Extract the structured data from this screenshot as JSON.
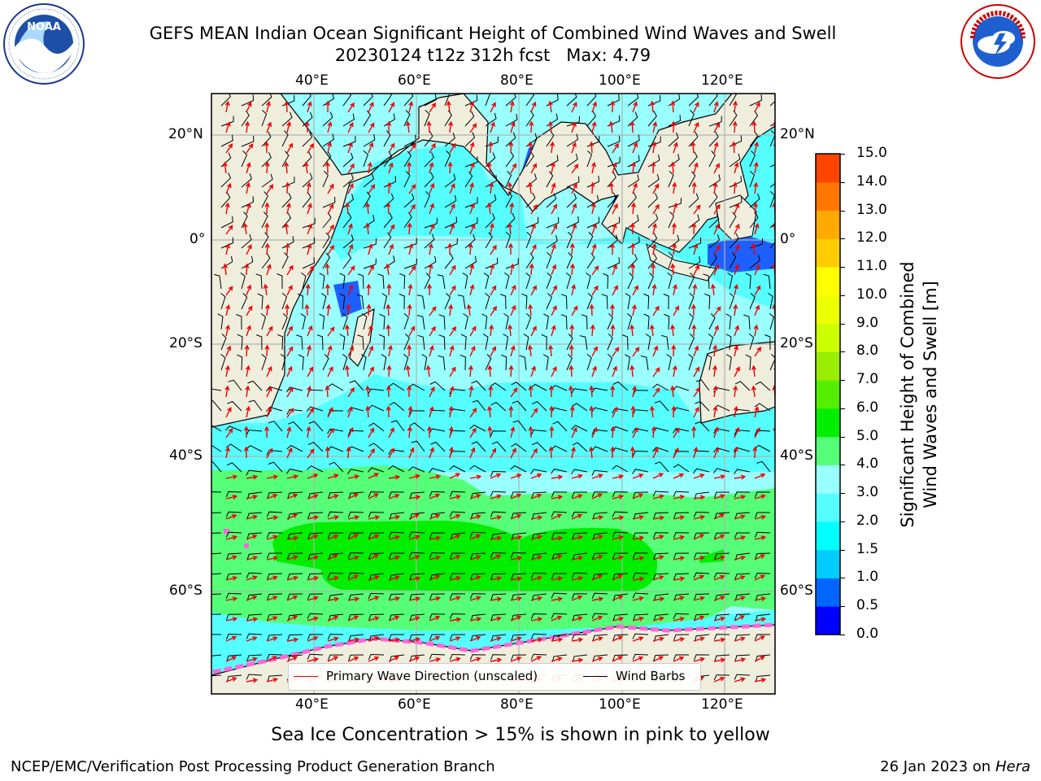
{
  "title": {
    "line1": "GEFS MEAN Indian Ocean Significant Height of Combined Wind Waves and Swell",
    "line2": "20230124 t12z 312h fcst   Max: 4.79"
  },
  "logos": {
    "noaa": {
      "text": "NOAA",
      "ring_text": "NATIONAL OCEANIC AND ATMOSPHERIC ADMINISTRATION · U.S. DEPARTMENT OF COMMERCE"
    },
    "nws": {
      "ring_text": "NATIONAL WEATHER SERVICE"
    }
  },
  "map": {
    "lon_ticks": [
      "40°E",
      "60°E",
      "80°E",
      "100°E",
      "120°E"
    ],
    "lat_ticks": [
      "20°N",
      "0°",
      "20°S",
      "40°S",
      "60°S"
    ],
    "legend": {
      "wave": {
        "label": "Primary Wave Direction (unscaled)",
        "color": "#ff0000"
      },
      "barb": {
        "label": "Wind Barbs",
        "color": "#000000"
      }
    },
    "colors": {
      "land": "#efeedd",
      "ice": "#ff66dd"
    }
  },
  "colorbar": {
    "label_line1": "Significant Height of Combined",
    "label_line2": "Wind Waves and Swell [m]",
    "ticks": [
      "0.0",
      "0.5",
      "1.0",
      "1.5",
      "2.0",
      "3.0",
      "4.0",
      "5.0",
      "6.0",
      "7.0",
      "8.0",
      "9.0",
      "10.0",
      "11.0",
      "12.0",
      "13.0",
      "14.0",
      "15.0"
    ],
    "colors": [
      "#0000ff",
      "#0066ff",
      "#00ccff",
      "#00ffff",
      "#55ffff",
      "#99ffff",
      "#55ff77",
      "#00ee00",
      "#55ee00",
      "#99ee00",
      "#ccff00",
      "#eeff00",
      "#ffff00",
      "#ffcc00",
      "#ffaa00",
      "#ff7700",
      "#ff4400"
    ]
  },
  "caption": "Sea Ice Concentration > 15% is shown in pink to yellow",
  "footer": {
    "left": "NCEP/EMC/Verification Post Processing Product Generation Branch",
    "right_prefix": "26 Jan 2023 on ",
    "right_host": "Hera"
  }
}
